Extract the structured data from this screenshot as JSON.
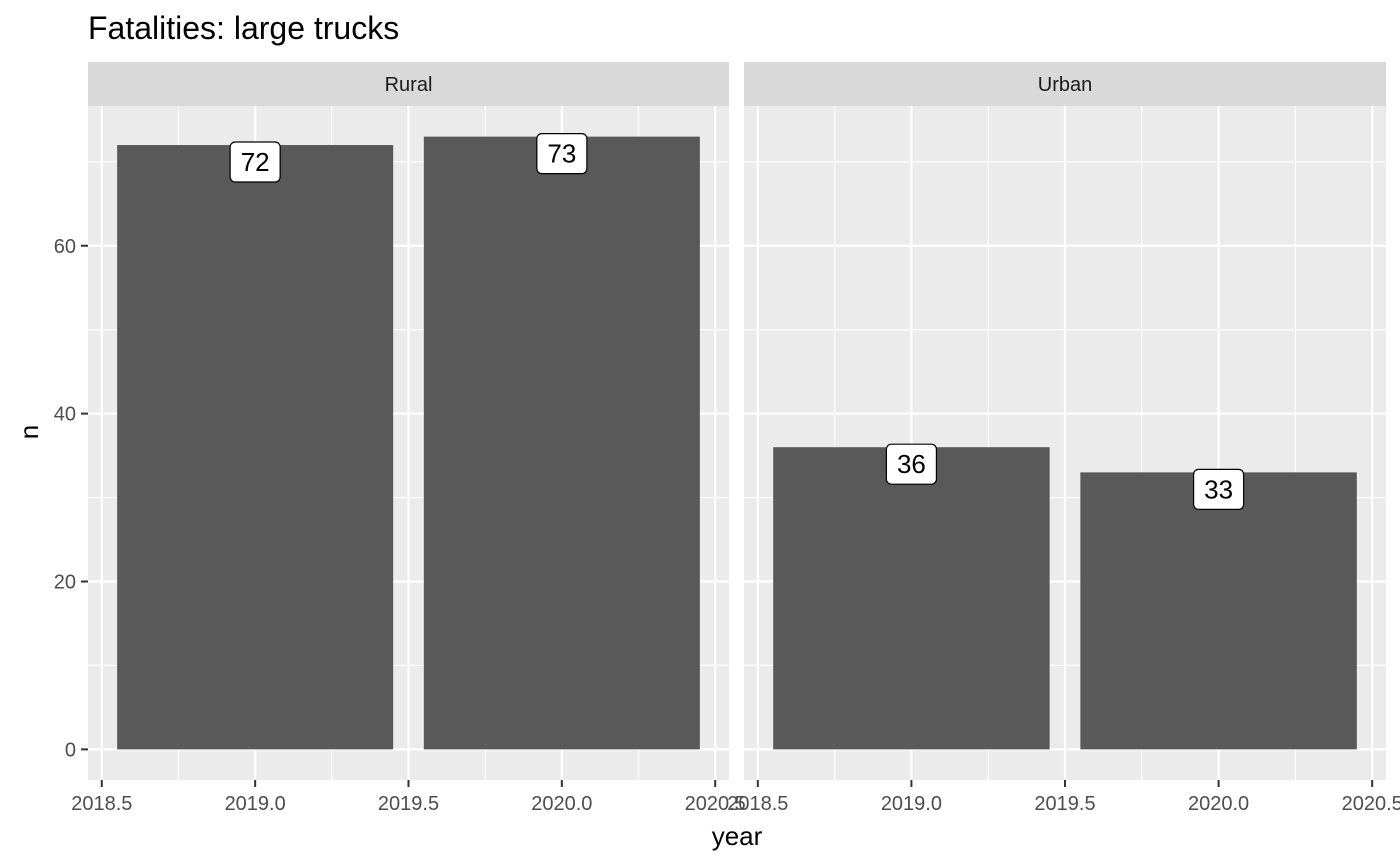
{
  "chart_data": {
    "type": "bar",
    "title": "Fatalities: large trucks",
    "xlabel": "year",
    "ylabel": "n",
    "panels": [
      {
        "name": "Rural",
        "x": [
          2019,
          2020
        ],
        "values": [
          72,
          73
        ]
      },
      {
        "name": "Urban",
        "x": [
          2019,
          2020
        ],
        "values": [
          36,
          33
        ]
      }
    ],
    "bar_width_years": 0.9,
    "xlim": [
      2018.455,
      2020.545
    ],
    "ylim": [
      -3.65,
      76.65
    ],
    "x_ticks": [
      {
        "value": 2018.5,
        "label": "2018.5"
      },
      {
        "value": 2019.0,
        "label": "2019.0"
      },
      {
        "value": 2019.5,
        "label": "2019.5"
      },
      {
        "value": 2020.0,
        "label": "2020.0"
      },
      {
        "value": 2020.5,
        "label": "2020.5"
      }
    ],
    "y_ticks": [
      {
        "value": 0,
        "label": "0"
      },
      {
        "value": 20,
        "label": "20"
      },
      {
        "value": 40,
        "label": "40"
      },
      {
        "value": 60,
        "label": "60"
      }
    ],
    "grid": true,
    "colors": {
      "bar": "#595959",
      "panel_background": "#ebebeb",
      "grid": "#ffffff",
      "strip_background": "#d9d9d9",
      "label_fill": "#ffffff",
      "label_border": "#000000"
    }
  }
}
